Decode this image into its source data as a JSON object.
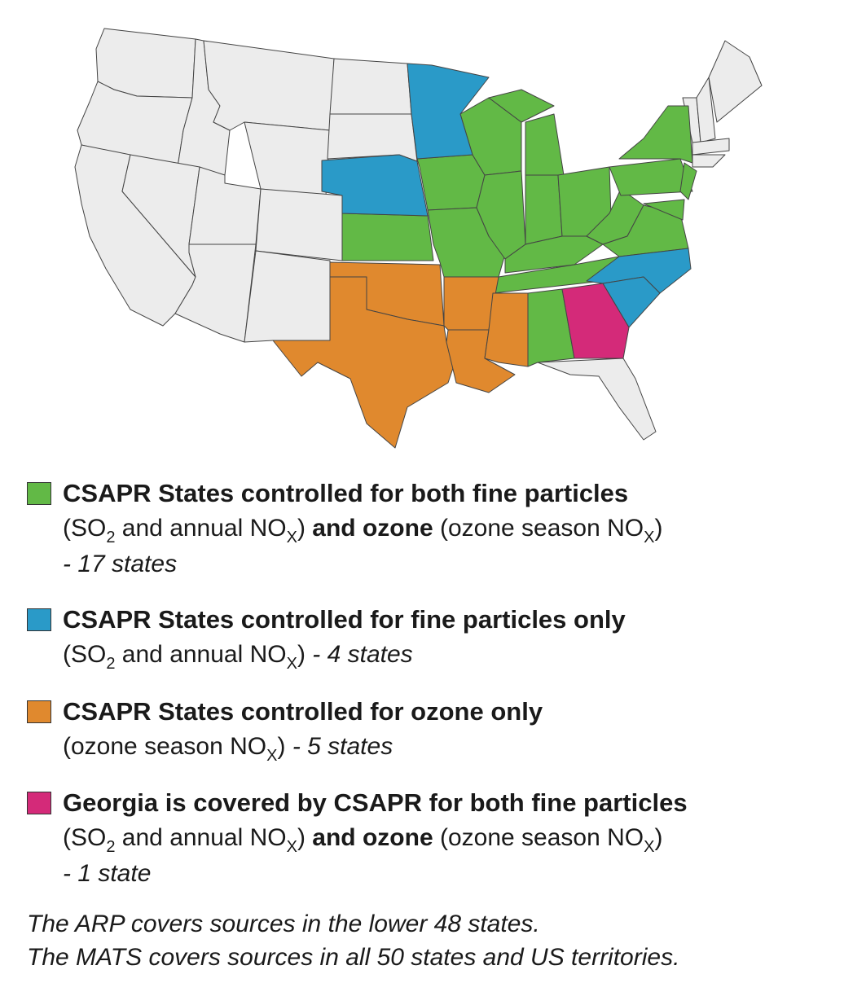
{
  "legend": {
    "items": [
      {
        "color": "#62b946",
        "title": "CSAPR States controlled for both fine particles",
        "lines": [
          [
            {
              "text": "(SO"
            },
            {
              "text": "2",
              "format": "sub"
            },
            {
              "text": " and annual NO"
            },
            {
              "text": "X",
              "format": "sub"
            },
            {
              "text": ") "
            },
            {
              "text": "and ozone",
              "format": "bold"
            },
            {
              "text": " (ozone season NO"
            },
            {
              "text": "X",
              "format": "sub"
            },
            {
              "text": ")"
            }
          ],
          [
            {
              "text": "- 17 states",
              "format": "italic"
            }
          ]
        ]
      },
      {
        "color": "#2a9ac8",
        "title": "CSAPR States controlled for fine particles only",
        "lines": [
          [
            {
              "text": "(SO"
            },
            {
              "text": "2",
              "format": "sub"
            },
            {
              "text": " and annual NO"
            },
            {
              "text": "X",
              "format": "sub"
            },
            {
              "text": ") "
            },
            {
              "text": "- 4 states",
              "format": "italic"
            }
          ]
        ]
      },
      {
        "color": "#e0892e",
        "title": "CSAPR States controlled for ozone only",
        "lines": [
          [
            {
              "text": "(ozone season NO"
            },
            {
              "text": "X",
              "format": "sub"
            },
            {
              "text": ") "
            },
            {
              "text": "- 5 states",
              "format": "italic"
            }
          ]
        ]
      },
      {
        "color": "#d42a79",
        "title": "Georgia is covered by CSAPR for both fine particles",
        "lines": [
          [
            {
              "text": "(SO"
            },
            {
              "text": "2",
              "format": "sub"
            },
            {
              "text": " and annual NO"
            },
            {
              "text": "X",
              "format": "sub"
            },
            {
              "text": ") "
            },
            {
              "text": "and ozone",
              "format": "bold"
            },
            {
              "text": " (ozone season NO"
            },
            {
              "text": "X",
              "format": "sub"
            },
            {
              "text": ")"
            }
          ],
          [
            {
              "text": "- 1 state",
              "format": "italic"
            }
          ]
        ]
      }
    ]
  },
  "footer": [
    "The ARP covers sources in the lower 48 states.",
    "The MATS covers sources in all 50 states and US territories."
  ]
}
